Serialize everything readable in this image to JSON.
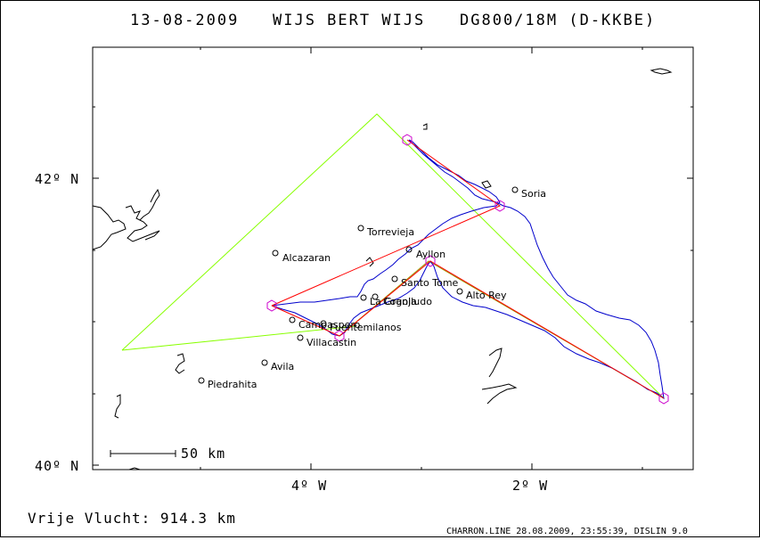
{
  "header": {
    "date": "13-08-2009",
    "pilot": "WIJS BERT WIJS",
    "glider": "DG800/18M (D-KKBE)"
  },
  "axes": {
    "lat_ticks": [
      "42º N",
      "40º N"
    ],
    "lon_ticks": [
      "4º W",
      "2º W"
    ]
  },
  "scale_bar": {
    "label": "50 km"
  },
  "footer": {
    "free_flight": "Vrije Vlucht:  914.3 km",
    "credits": "CHARRON.LINE 28.08.2009, 23:55:39, DISLIN 9.0"
  },
  "towns": [
    {
      "name": "Soria"
    },
    {
      "name": "Torrevieja"
    },
    {
      "name": "Alcazaran"
    },
    {
      "name": "Ayllon"
    },
    {
      "name": "Santo Tome"
    },
    {
      "name": "Alto Rey"
    },
    {
      "name": "La Granja"
    },
    {
      "name": "Cogolludo"
    },
    {
      "name": "Campaspero"
    },
    {
      "name": "Fuentemilanos"
    },
    {
      "name": "Villacastin"
    },
    {
      "name": "Avila"
    },
    {
      "name": "Piedrahita"
    }
  ],
  "colors": {
    "track": "#0000cc",
    "task": "#ff0000",
    "triangle_outer": "#88ff00",
    "triangle_inner": "#999900",
    "turnpoint": "#cc00cc",
    "coast": "#000000"
  }
}
